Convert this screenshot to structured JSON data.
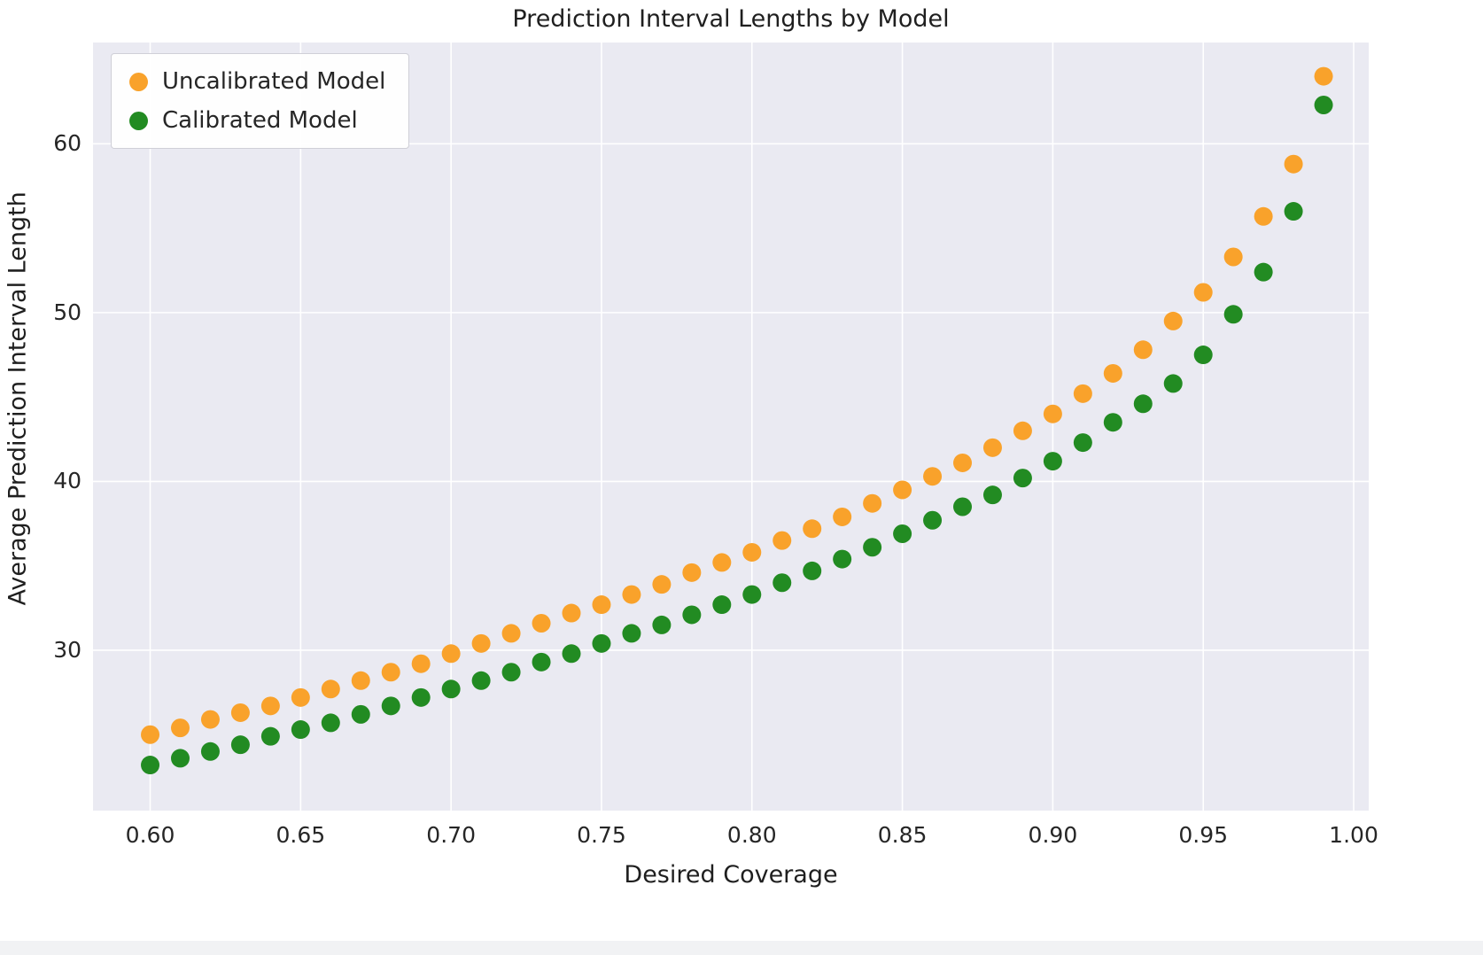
{
  "chart_data": {
    "type": "scatter",
    "title": "Prediction Interval Lengths by Model",
    "xlabel": "Desired Coverage",
    "ylabel": "Average Prediction Interval Length",
    "xlim": [
      0.581,
      1.005
    ],
    "ylim": [
      20.5,
      66
    ],
    "grid": true,
    "background_color": "#eaeaf2",
    "gridline_color": "#ffffff",
    "legend_position": "upper left",
    "x_ticks": [
      0.6,
      0.65,
      0.7,
      0.75,
      0.8,
      0.85,
      0.9,
      0.95,
      1.0
    ],
    "x_tick_labels": [
      "0.60",
      "0.65",
      "0.70",
      "0.75",
      "0.80",
      "0.85",
      "0.90",
      "0.95",
      "1.00"
    ],
    "y_ticks": [
      30,
      40,
      50,
      60
    ],
    "y_tick_labels": [
      "30",
      "40",
      "50",
      "60"
    ],
    "x": [
      0.6,
      0.61,
      0.62,
      0.63,
      0.64,
      0.65,
      0.66,
      0.67,
      0.68,
      0.69,
      0.7,
      0.71,
      0.72,
      0.73,
      0.74,
      0.75,
      0.76,
      0.77,
      0.78,
      0.79,
      0.8,
      0.81,
      0.82,
      0.83,
      0.84,
      0.85,
      0.86,
      0.87,
      0.88,
      0.89,
      0.9,
      0.91,
      0.92,
      0.93,
      0.94,
      0.95,
      0.96,
      0.97,
      0.98,
      0.99
    ],
    "series": [
      {
        "name": "Uncalibrated Model",
        "color": "#f9a22b",
        "values": [
          25.0,
          25.4,
          25.9,
          26.3,
          26.7,
          27.2,
          27.7,
          28.2,
          28.7,
          29.2,
          29.8,
          30.4,
          31.0,
          31.6,
          32.2,
          32.7,
          33.3,
          33.9,
          34.6,
          35.2,
          35.8,
          36.5,
          37.2,
          37.9,
          38.7,
          39.5,
          40.3,
          41.1,
          42.0,
          43.0,
          44.0,
          45.2,
          46.4,
          47.8,
          49.5,
          51.2,
          53.3,
          55.7,
          58.8,
          64.0
        ]
      },
      {
        "name": "Calibrated Model",
        "color": "#228b22",
        "values": [
          23.2,
          23.6,
          24.0,
          24.4,
          24.9,
          25.3,
          25.7,
          26.2,
          26.7,
          27.2,
          27.7,
          28.2,
          28.7,
          29.3,
          29.8,
          30.4,
          31.0,
          31.5,
          32.1,
          32.7,
          33.3,
          34.0,
          34.7,
          35.4,
          36.1,
          36.9,
          37.7,
          38.5,
          39.2,
          40.2,
          41.2,
          42.3,
          43.5,
          44.6,
          45.8,
          47.5,
          49.9,
          52.4,
          56.0,
          62.3
        ]
      }
    ],
    "marker_radius_px": 10.5
  }
}
